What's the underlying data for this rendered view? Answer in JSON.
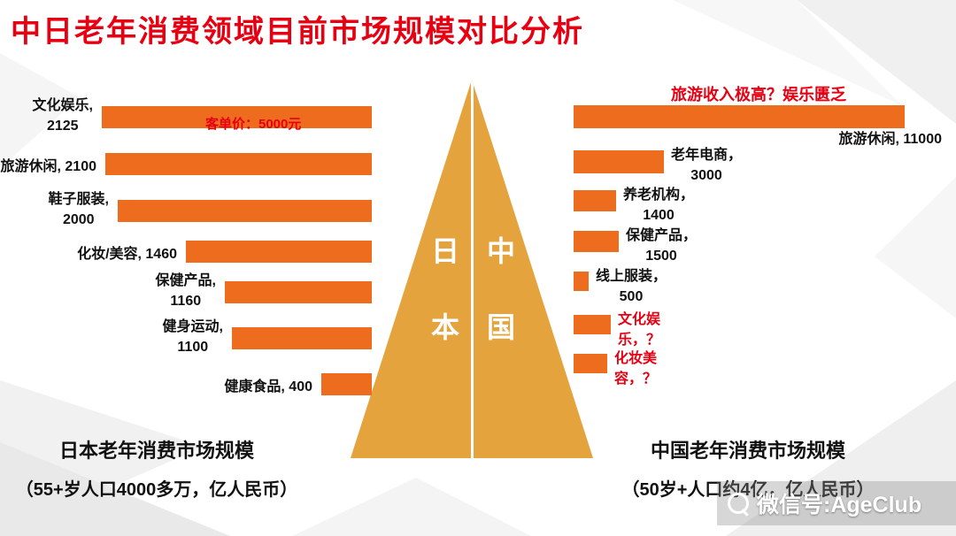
{
  "title": "中日老年消费领域目前市场规模对比分析",
  "colors": {
    "accent_red": "#e60012",
    "bar_orange": "#ee6c1d",
    "pyramid_gold": "#e4a33c",
    "text_dark": "#111111",
    "watermark_text": "#ffffff"
  },
  "pyramid": {
    "left_top": "日",
    "left_bottom": "本",
    "right_top": "中",
    "right_bottom": "国"
  },
  "watermark": {
    "text": "微信号:AgeClub"
  },
  "chart_data": [
    {
      "type": "bar",
      "orientation": "horizontal",
      "side": "japan",
      "title": "日本老年消费市场规模",
      "subtitle": "（55+岁人口4000多万，亿人民币）",
      "unit": "亿人民币",
      "bar_alignment": "right",
      "xlim": [
        0,
        2200
      ],
      "categories": [
        "文化娱乐",
        "旅游休闲",
        "鞋子服装",
        "化妆/美容",
        "保健产品",
        "健身运动",
        "健康食品"
      ],
      "values": [
        2125,
        2100,
        2000,
        1460,
        1160,
        1100,
        400
      ],
      "values_display": [
        "2125",
        "2100",
        "2000",
        "1460",
        "1160",
        "1100",
        "400"
      ],
      "labels": [
        "文化娱乐,\n2125",
        "旅游休闲, 2100",
        "鞋子服装,\n2000",
        "化妆/美容, 1460",
        "保健产品,\n1160",
        "健身运动,\n1100",
        "健康食品, 400"
      ],
      "annotation": "客单价：5000元",
      "red_label_indices": []
    },
    {
      "type": "bar",
      "orientation": "horizontal",
      "side": "china",
      "title": "中国老年消费市场规模",
      "subtitle": "（50岁+人口约4亿，亿人民币）",
      "unit": "亿人民币",
      "bar_alignment": "left",
      "xlim": [
        0,
        11000
      ],
      "categories": [
        "旅游休闲",
        "老年电商",
        "养老机构",
        "保健产品",
        "线上服装",
        "文化娱乐",
        "化妆美容"
      ],
      "values": [
        11000,
        3000,
        1400,
        1500,
        500,
        null,
        null
      ],
      "values_display": [
        "11000",
        "3000",
        "1400",
        "1500",
        "500",
        "？",
        "？"
      ],
      "labels": [
        "旅游休闲, 11000",
        "老年电商，\n3000",
        "养老机构，\n1400",
        "保健产品，\n1500",
        "线上服装，\n500",
        "文化娱\n乐，？",
        "化妆美\n容，？"
      ],
      "annotation": "旅游收入极高？娱乐匮乏",
      "red_label_indices": [
        5,
        6
      ]
    }
  ]
}
